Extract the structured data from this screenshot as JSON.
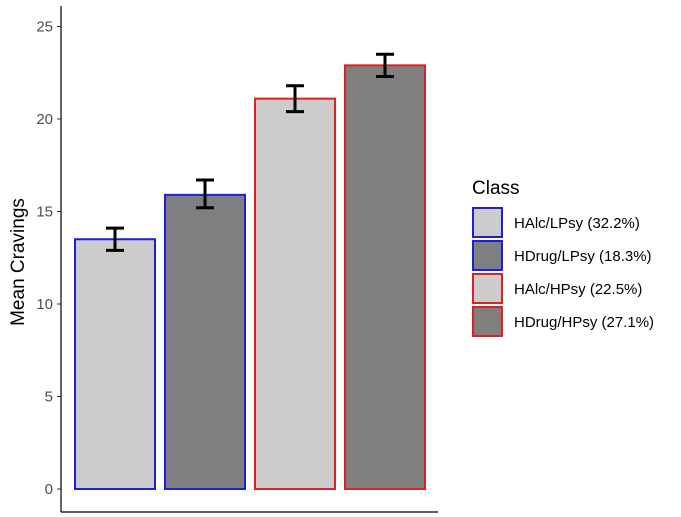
{
  "chart_data": {
    "type": "bar",
    "title": "",
    "xlabel": "",
    "ylabel": "Mean Cravings",
    "ylim": [
      0,
      26
    ],
    "yticks": [
      0,
      5,
      10,
      15,
      20,
      25
    ],
    "grid": false,
    "legend_title": "Class",
    "legend_position": "right",
    "categories": [
      "HAlc/LPsy (32.2%)",
      "HDrug/LPsy (18.3%)",
      "HAlc/HPsy (22.5%)",
      "HDrug/HPsy (27.1%)"
    ],
    "values": [
      13.5,
      15.9,
      21.1,
      22.9
    ],
    "error_low": [
      12.9,
      15.2,
      20.4,
      22.3
    ],
    "error_high": [
      14.1,
      16.7,
      21.8,
      23.5
    ],
    "fill_colors": [
      "#cccccc",
      "#7f7f7f",
      "#cccccc",
      "#7f7f7f"
    ],
    "outline_colors": [
      "#1f1fd6",
      "#1f1fd6",
      "#e02020",
      "#e02020"
    ]
  }
}
